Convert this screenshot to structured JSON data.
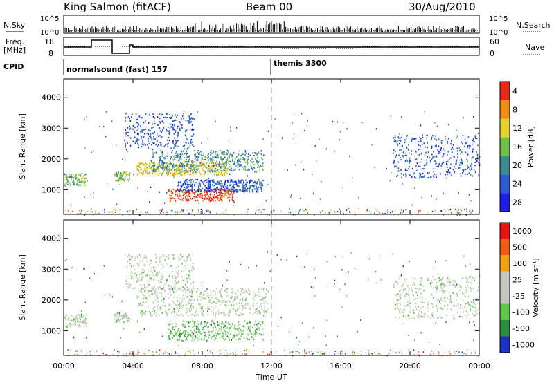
{
  "header": {
    "station": "King Salmon (fitACF)",
    "beam": "Beam 00",
    "date": "30/Aug/2010"
  },
  "nsky_panel": {
    "left_label": "N.Sky",
    "right_label": "N.Search",
    "ytick_top": "10^5",
    "ytick_bottom": "10^0"
  },
  "freq_panel": {
    "left_label_1": "Freq.",
    "left_label_2": "[MHz]",
    "right_label": "Nave",
    "left_ticks": [
      "18",
      "8"
    ],
    "right_ticks": [
      "60",
      "0"
    ]
  },
  "cpid_panel": {
    "label": "CPID",
    "modes": [
      {
        "name": "normalsound (fast) 157",
        "start_hour": 0
      },
      {
        "name": "themis 3300",
        "start_hour": 12
      }
    ]
  },
  "chart_data": [
    {
      "type": "heatmap",
      "name": "power",
      "ylabel": "Slant Range [km]",
      "yticks": [
        1000,
        2000,
        3000,
        4000
      ],
      "ylim": [
        200,
        4600
      ],
      "xlim_hours": [
        0,
        24
      ],
      "colorbar_label": "Power [dB]",
      "colorbar_ticks": [
        "4",
        "8",
        "12",
        "16",
        "20",
        "24",
        "28"
      ],
      "colorbar_colors": [
        "#1e1ee6",
        "#2a5ad2",
        "#3a8a8c",
        "#6fbf4a",
        "#e6d22a",
        "#f08c14",
        "#e62814"
      ],
      "echo_regions": [
        {
          "t0": 0.0,
          "t1": 1.3,
          "r0": 1150,
          "r1": 1550,
          "level": 3
        },
        {
          "t0": 2.9,
          "t1": 3.8,
          "r0": 1300,
          "r1": 1600,
          "level": 3
        },
        {
          "t0": 4.2,
          "t1": 9.5,
          "r0": 1500,
          "r1": 1900,
          "level": 4
        },
        {
          "t0": 5.0,
          "t1": 11.5,
          "r0": 1600,
          "r1": 2300,
          "level": 2
        },
        {
          "t0": 6.0,
          "t1": 9.8,
          "r0": 650,
          "r1": 1050,
          "level": 6
        },
        {
          "t0": 6.5,
          "t1": 11.5,
          "r0": 950,
          "r1": 1350,
          "level": 1
        },
        {
          "t0": 3.5,
          "t1": 7.5,
          "r0": 2300,
          "r1": 3500,
          "level": 1
        },
        {
          "t0": 19.0,
          "t1": 24.0,
          "r0": 1400,
          "r1": 2800,
          "level": 1
        }
      ]
    },
    {
      "type": "heatmap",
      "name": "velocity",
      "ylabel": "Slant Range [km]",
      "yticks": [
        1000,
        2000,
        3000,
        4000
      ],
      "ylim": [
        200,
        4600
      ],
      "xlim_hours": [
        0,
        24
      ],
      "colorbar_label": "Velocity [m s⁻¹]",
      "colorbar_ticks": [
        "1000",
        "500",
        "100",
        "25",
        "-25",
        "-100",
        "-500",
        "-1000"
      ],
      "colorbar_colors": [
        "#1e32c8",
        "#2a8c3c",
        "#5fc84a",
        "#c8c8c0",
        "#c8c8c0",
        "#f0a014",
        "#f05a14",
        "#e61414"
      ],
      "echo_regions": [
        {
          "t0": 0.0,
          "t1": 1.3,
          "r0": 1150,
          "r1": 1550,
          "level": 3
        },
        {
          "t0": 2.9,
          "t1": 3.8,
          "r0": 1300,
          "r1": 1600,
          "level": 3
        },
        {
          "t0": 4.2,
          "t1": 11.8,
          "r0": 1500,
          "r1": 2400,
          "level": 3
        },
        {
          "t0": 6.0,
          "t1": 11.5,
          "r0": 700,
          "r1": 1350,
          "level": 2
        },
        {
          "t0": 3.5,
          "t1": 7.5,
          "r0": 2300,
          "r1": 3500,
          "level": 3
        },
        {
          "t0": 19.0,
          "t1": 24.0,
          "r0": 1400,
          "r1": 2800,
          "level": 3
        }
      ]
    }
  ],
  "time_axis": {
    "label": "Time UT",
    "ticks": [
      "00:00",
      "04:00",
      "08:00",
      "12:00",
      "16:00",
      "20:00",
      "00:00"
    ]
  }
}
